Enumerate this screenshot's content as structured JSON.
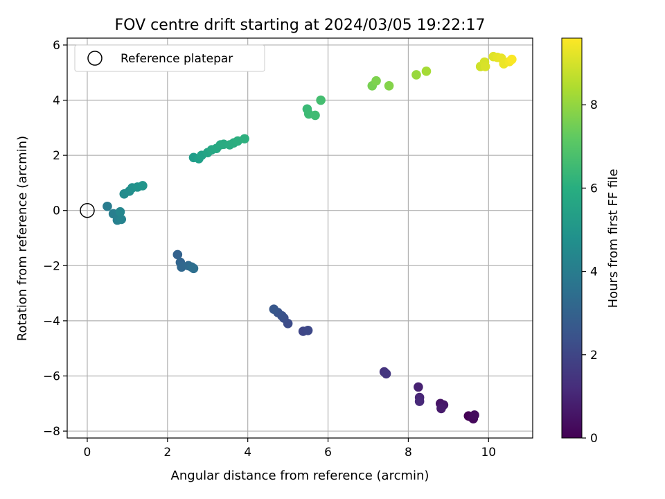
{
  "chart_data": {
    "type": "scatter",
    "title": "FOV centre drift starting at 2024/03/05 19:22:17",
    "xlabel": "Angular distance from reference (arcmin)",
    "ylabel": "Rotation from reference (arcmin)",
    "xlim": [
      -0.5,
      11.1
    ],
    "ylim": [
      -8.25,
      6.25
    ],
    "xticks": [
      0,
      2,
      4,
      6,
      8,
      10
    ],
    "yticks": [
      -8,
      -6,
      -4,
      -2,
      0,
      2,
      4,
      6
    ],
    "grid": true,
    "legend": {
      "placement": "top-left",
      "entries": [
        "Reference platepar"
      ]
    },
    "reference_point": {
      "x": 0,
      "y": 0
    },
    "colorbar": {
      "label": "Hours from first FF file",
      "range": [
        0,
        9.6
      ],
      "ticks": [
        0,
        2,
        4,
        6,
        8
      ],
      "colormap": "viridis"
    },
    "points": [
      {
        "x": 9.5,
        "y": -7.45,
        "h": 0.0
      },
      {
        "x": 9.58,
        "y": -7.5,
        "h": 0.1
      },
      {
        "x": 9.62,
        "y": -7.55,
        "h": 0.2
      },
      {
        "x": 9.65,
        "y": -7.42,
        "h": 0.3
      },
      {
        "x": 8.8,
        "y": -7.0,
        "h": 0.5
      },
      {
        "x": 8.88,
        "y": -7.05,
        "h": 0.6
      },
      {
        "x": 8.82,
        "y": -7.18,
        "h": 0.7
      },
      {
        "x": 8.25,
        "y": -6.4,
        "h": 0.9
      },
      {
        "x": 8.28,
        "y": -6.78,
        "h": 1.0
      },
      {
        "x": 8.28,
        "y": -6.92,
        "h": 1.1
      },
      {
        "x": 7.4,
        "y": -5.85,
        "h": 1.4
      },
      {
        "x": 7.45,
        "y": -5.92,
        "h": 1.5
      },
      {
        "x": 5.38,
        "y": -4.38,
        "h": 2.0
      },
      {
        "x": 5.5,
        "y": -4.35,
        "h": 2.1
      },
      {
        "x": 5.0,
        "y": -4.1,
        "h": 2.2
      },
      {
        "x": 4.9,
        "y": -3.9,
        "h": 2.3
      },
      {
        "x": 4.85,
        "y": -3.82,
        "h": 2.4
      },
      {
        "x": 4.75,
        "y": -3.7,
        "h": 2.5
      },
      {
        "x": 4.65,
        "y": -3.58,
        "h": 2.6
      },
      {
        "x": 2.25,
        "y": -1.6,
        "h": 3.0
      },
      {
        "x": 2.32,
        "y": -1.88,
        "h": 3.1
      },
      {
        "x": 2.35,
        "y": -2.05,
        "h": 3.2
      },
      {
        "x": 2.52,
        "y": -2.0,
        "h": 3.3
      },
      {
        "x": 2.6,
        "y": -2.05,
        "h": 3.4
      },
      {
        "x": 2.65,
        "y": -2.1,
        "h": 3.5
      },
      {
        "x": 0.5,
        "y": 0.15,
        "h": 4.0
      },
      {
        "x": 0.65,
        "y": -0.12,
        "h": 4.1
      },
      {
        "x": 0.75,
        "y": -0.35,
        "h": 4.2
      },
      {
        "x": 0.85,
        "y": -0.32,
        "h": 4.3
      },
      {
        "x": 0.82,
        "y": -0.05,
        "h": 4.4
      },
      {
        "x": 0.92,
        "y": 0.6,
        "h": 4.6
      },
      {
        "x": 1.05,
        "y": 0.7,
        "h": 4.7
      },
      {
        "x": 1.12,
        "y": 0.82,
        "h": 4.8
      },
      {
        "x": 1.25,
        "y": 0.85,
        "h": 4.9
      },
      {
        "x": 1.38,
        "y": 0.9,
        "h": 5.0
      },
      {
        "x": 2.65,
        "y": 1.92,
        "h": 5.3
      },
      {
        "x": 2.78,
        "y": 1.88,
        "h": 5.4
      },
      {
        "x": 2.85,
        "y": 2.0,
        "h": 5.5
      },
      {
        "x": 3.0,
        "y": 2.1,
        "h": 5.6
      },
      {
        "x": 3.1,
        "y": 2.2,
        "h": 5.7
      },
      {
        "x": 3.22,
        "y": 2.25,
        "h": 5.75
      },
      {
        "x": 3.32,
        "y": 2.38,
        "h": 5.8
      },
      {
        "x": 3.4,
        "y": 2.4,
        "h": 5.85
      },
      {
        "x": 3.55,
        "y": 2.38,
        "h": 5.9
      },
      {
        "x": 3.65,
        "y": 2.45,
        "h": 5.95
      },
      {
        "x": 3.75,
        "y": 2.52,
        "h": 6.0
      },
      {
        "x": 3.92,
        "y": 2.6,
        "h": 6.05
      },
      {
        "x": 5.48,
        "y": 3.68,
        "h": 6.5
      },
      {
        "x": 5.52,
        "y": 3.5,
        "h": 6.55
      },
      {
        "x": 5.68,
        "y": 3.45,
        "h": 6.6
      },
      {
        "x": 5.82,
        "y": 4.0,
        "h": 6.7
      },
      {
        "x": 7.1,
        "y": 4.52,
        "h": 7.6
      },
      {
        "x": 7.2,
        "y": 4.7,
        "h": 7.7
      },
      {
        "x": 7.52,
        "y": 4.52,
        "h": 7.8
      },
      {
        "x": 8.2,
        "y": 4.92,
        "h": 8.1
      },
      {
        "x": 8.45,
        "y": 5.05,
        "h": 8.3
      },
      {
        "x": 9.8,
        "y": 5.22,
        "h": 8.9
      },
      {
        "x": 9.9,
        "y": 5.38,
        "h": 9.0
      },
      {
        "x": 9.92,
        "y": 5.22,
        "h": 9.05
      },
      {
        "x": 10.12,
        "y": 5.58,
        "h": 9.15
      },
      {
        "x": 10.22,
        "y": 5.55,
        "h": 9.25
      },
      {
        "x": 10.32,
        "y": 5.52,
        "h": 9.3
      },
      {
        "x": 10.38,
        "y": 5.32,
        "h": 9.35
      },
      {
        "x": 10.52,
        "y": 5.4,
        "h": 9.45
      },
      {
        "x": 10.58,
        "y": 5.48,
        "h": 9.55
      }
    ]
  }
}
